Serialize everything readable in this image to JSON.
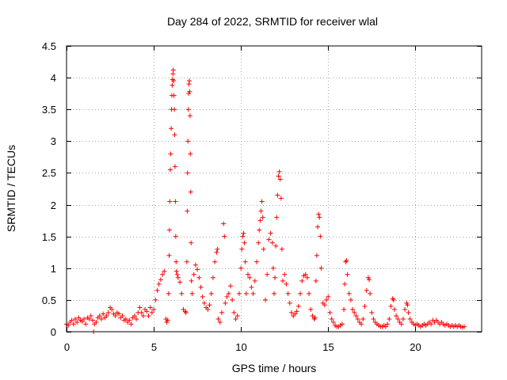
{
  "chart_data": {
    "type": "scatter",
    "title": "Day 284 of 2022, SRMTID for receiver wlal",
    "xlabel": "GPS time / hours",
    "ylabel": "SRMTID / TECUs",
    "xlim": [
      0,
      23.8
    ],
    "ylim": [
      0,
      4.5
    ],
    "xticks": [
      0,
      5,
      10,
      15,
      20
    ],
    "xtick_labels": [
      "0",
      "5",
      "10",
      "15",
      "20"
    ],
    "yticks": [
      0,
      0.5,
      1,
      1.5,
      2,
      2.5,
      3,
      3.5,
      4,
      4.5
    ],
    "ytick_labels": [
      "0",
      "0.5",
      "1",
      "1.5",
      "2",
      "2.5",
      "3",
      "3.5",
      "4",
      "4.5"
    ],
    "grid": true,
    "marker": "+",
    "color": "#ff0000",
    "series": [
      {
        "name": "SRMTID",
        "points": [
          [
            0.0,
            0.12
          ],
          [
            0.1,
            0.1
          ],
          [
            0.2,
            0.15
          ],
          [
            0.3,
            0.18
          ],
          [
            0.4,
            0.12
          ],
          [
            0.5,
            0.2
          ],
          [
            0.6,
            0.15
          ],
          [
            0.7,
            0.22
          ],
          [
            0.8,
            0.18
          ],
          [
            0.9,
            0.16
          ],
          [
            1.0,
            0.2
          ],
          [
            1.1,
            0.12
          ],
          [
            1.2,
            0.22
          ],
          [
            1.3,
            0.2
          ],
          [
            1.4,
            0.25
          ],
          [
            1.5,
            0.18
          ],
          [
            1.55,
            0.0
          ],
          [
            1.6,
            0.12
          ],
          [
            1.7,
            0.15
          ],
          [
            1.8,
            0.22
          ],
          [
            1.9,
            0.25
          ],
          [
            2.0,
            0.2
          ],
          [
            2.1,
            0.28
          ],
          [
            2.2,
            0.22
          ],
          [
            2.3,
            0.25
          ],
          [
            2.4,
            0.3
          ],
          [
            2.5,
            0.38
          ],
          [
            2.6,
            0.35
          ],
          [
            2.7,
            0.28
          ],
          [
            2.8,
            0.25
          ],
          [
            2.9,
            0.3
          ],
          [
            3.0,
            0.28
          ],
          [
            3.1,
            0.22
          ],
          [
            3.2,
            0.25
          ],
          [
            3.3,
            0.18
          ],
          [
            3.4,
            0.2
          ],
          [
            3.5,
            0.15
          ],
          [
            3.6,
            0.18
          ],
          [
            3.7,
            0.12
          ],
          [
            3.8,
            0.22
          ],
          [
            3.9,
            0.25
          ],
          [
            4.0,
            0.2
          ],
          [
            4.1,
            0.3
          ],
          [
            4.2,
            0.38
          ],
          [
            4.3,
            0.3
          ],
          [
            4.4,
            0.25
          ],
          [
            4.5,
            0.35
          ],
          [
            4.6,
            0.32
          ],
          [
            4.7,
            0.25
          ],
          [
            4.8,
            0.38
          ],
          [
            4.9,
            0.3
          ],
          [
            5.0,
            0.35
          ],
          [
            5.1,
            0.5
          ],
          [
            5.2,
            0.65
          ],
          [
            5.3,
            0.75
          ],
          [
            5.4,
            0.82
          ],
          [
            5.5,
            0.9
          ],
          [
            5.6,
            0.95
          ],
          [
            5.7,
            0.2
          ],
          [
            5.75,
            0.15
          ],
          [
            5.8,
            0.18
          ],
          [
            5.85,
            0.6
          ],
          [
            5.88,
            1.2
          ],
          [
            5.9,
            1.6
          ],
          [
            5.92,
            2.05
          ],
          [
            5.95,
            2.55
          ],
          [
            5.97,
            2.8
          ],
          [
            6.0,
            3.2
          ],
          [
            6.02,
            3.5
          ],
          [
            6.04,
            3.72
          ],
          [
            6.06,
            3.88
          ],
          [
            6.08,
            3.97
          ],
          [
            6.1,
            4.06
          ],
          [
            6.12,
            4.12
          ],
          [
            6.14,
            3.95
          ],
          [
            6.16,
            3.72
          ],
          [
            6.18,
            3.5
          ],
          [
            6.2,
            3.1
          ],
          [
            6.22,
            2.6
          ],
          [
            6.24,
            2.05
          ],
          [
            6.26,
            1.5
          ],
          [
            6.28,
            1.1
          ],
          [
            6.3,
            0.95
          ],
          [
            6.35,
            0.9
          ],
          [
            6.4,
            0.85
          ],
          [
            6.5,
            0.78
          ],
          [
            6.6,
            0.6
          ],
          [
            6.7,
            0.35
          ],
          [
            6.8,
            0.32
          ],
          [
            6.85,
            0.3
          ],
          [
            6.9,
            1.1
          ],
          [
            6.92,
            1.9
          ],
          [
            6.94,
            2.5
          ],
          [
            6.96,
            3.0
          ],
          [
            6.98,
            3.5
          ],
          [
            7.0,
            3.75
          ],
          [
            7.02,
            3.9
          ],
          [
            7.04,
            3.95
          ],
          [
            7.06,
            3.78
          ],
          [
            7.08,
            3.4
          ],
          [
            7.1,
            2.8
          ],
          [
            7.12,
            2.2
          ],
          [
            7.14,
            1.4
          ],
          [
            7.16,
            0.8
          ],
          [
            7.2,
            0.6
          ],
          [
            7.3,
            0.9
          ],
          [
            7.4,
            1.05
          ],
          [
            7.5,
            0.98
          ],
          [
            7.6,
            0.85
          ],
          [
            7.7,
            0.7
          ],
          [
            7.8,
            0.55
          ],
          [
            7.9,
            0.45
          ],
          [
            8.0,
            0.38
          ],
          [
            8.1,
            0.35
          ],
          [
            8.2,
            0.42
          ],
          [
            8.3,
            0.6
          ],
          [
            8.4,
            0.85
          ],
          [
            8.5,
            1.1
          ],
          [
            8.6,
            1.25
          ],
          [
            8.65,
            1.3
          ],
          [
            8.7,
            0.2
          ],
          [
            8.8,
            0.15
          ],
          [
            8.9,
            0.3
          ],
          [
            9.0,
            1.7
          ],
          [
            9.05,
            1.5
          ],
          [
            9.1,
            0.45
          ],
          [
            9.2,
            0.55
          ],
          [
            9.3,
            0.6
          ],
          [
            9.4,
            0.72
          ],
          [
            9.5,
            0.5
          ],
          [
            9.6,
            0.3
          ],
          [
            9.7,
            0.2
          ],
          [
            9.8,
            0.25
          ],
          [
            9.9,
            0.6
          ],
          [
            10.0,
            1.0
          ],
          [
            10.05,
            1.3
          ],
          [
            10.1,
            1.5
          ],
          [
            10.15,
            1.55
          ],
          [
            10.2,
            1.4
          ],
          [
            10.25,
            1.1
          ],
          [
            10.3,
            0.6
          ],
          [
            10.4,
            0.9
          ],
          [
            10.5,
            0.85
          ],
          [
            10.6,
            0.7
          ],
          [
            10.7,
            0.6
          ],
          [
            10.8,
            0.8
          ],
          [
            10.9,
            1.1
          ],
          [
            11.0,
            1.4
          ],
          [
            11.05,
            1.6
          ],
          [
            11.1,
            1.75
          ],
          [
            11.15,
            1.9
          ],
          [
            11.2,
            2.05
          ],
          [
            11.25,
            1.8
          ],
          [
            11.3,
            1.3
          ],
          [
            11.4,
            0.5
          ],
          [
            11.5,
            0.9
          ],
          [
            11.6,
            1.45
          ],
          [
            11.7,
            1.55
          ],
          [
            11.8,
            1.4
          ],
          [
            11.85,
            1.0
          ],
          [
            11.9,
            0.6
          ],
          [
            11.95,
            0.85
          ],
          [
            12.0,
            1.35
          ],
          [
            12.05,
            1.8
          ],
          [
            12.1,
            2.15
          ],
          [
            12.15,
            2.45
          ],
          [
            12.2,
            2.52
          ],
          [
            12.25,
            2.4
          ],
          [
            12.3,
            2.1
          ],
          [
            12.35,
            1.3
          ],
          [
            12.4,
            0.8
          ],
          [
            12.5,
            0.9
          ],
          [
            12.6,
            0.75
          ],
          [
            12.7,
            0.6
          ],
          [
            12.8,
            0.45
          ],
          [
            12.9,
            0.3
          ],
          [
            13.0,
            0.25
          ],
          [
            13.1,
            0.28
          ],
          [
            13.2,
            0.32
          ],
          [
            13.3,
            0.4
          ],
          [
            13.4,
            0.6
          ],
          [
            13.5,
            0.8
          ],
          [
            13.6,
            0.88
          ],
          [
            13.7,
            0.9
          ],
          [
            13.8,
            0.85
          ],
          [
            13.9,
            0.6
          ],
          [
            14.0,
            0.35
          ],
          [
            14.1,
            0.25
          ],
          [
            14.2,
            0.2
          ],
          [
            14.25,
            0.22
          ],
          [
            14.3,
            0.8
          ],
          [
            14.35,
            1.2
          ],
          [
            14.4,
            1.65
          ],
          [
            14.45,
            1.85
          ],
          [
            14.5,
            1.8
          ],
          [
            14.55,
            1.5
          ],
          [
            14.6,
            1.0
          ],
          [
            14.7,
            0.45
          ],
          [
            14.8,
            0.42
          ],
          [
            14.9,
            0.5
          ],
          [
            15.0,
            0.55
          ],
          [
            15.1,
            0.3
          ],
          [
            15.2,
            0.2
          ],
          [
            15.3,
            0.15
          ],
          [
            15.4,
            0.1
          ],
          [
            15.5,
            0.08
          ],
          [
            15.6,
            0.08
          ],
          [
            15.7,
            0.1
          ],
          [
            15.8,
            0.12
          ],
          [
            15.9,
            0.35
          ],
          [
            15.95,
            0.75
          ],
          [
            16.0,
            1.1
          ],
          [
            16.05,
            1.12
          ],
          [
            16.1,
            0.9
          ],
          [
            16.2,
            0.6
          ],
          [
            16.3,
            0.5
          ],
          [
            16.4,
            0.35
          ],
          [
            16.5,
            0.3
          ],
          [
            16.6,
            0.25
          ],
          [
            16.7,
            0.2
          ],
          [
            16.8,
            0.15
          ],
          [
            16.9,
            0.12
          ],
          [
            17.0,
            0.2
          ],
          [
            17.1,
            0.4
          ],
          [
            17.2,
            0.65
          ],
          [
            17.3,
            0.85
          ],
          [
            17.35,
            0.82
          ],
          [
            17.4,
            0.6
          ],
          [
            17.5,
            0.3
          ],
          [
            17.6,
            0.2
          ],
          [
            17.7,
            0.15
          ],
          [
            17.8,
            0.12
          ],
          [
            17.9,
            0.1
          ],
          [
            18.0,
            0.08
          ],
          [
            18.1,
            0.08
          ],
          [
            18.2,
            0.1
          ],
          [
            18.3,
            0.08
          ],
          [
            18.4,
            0.12
          ],
          [
            18.5,
            0.2
          ],
          [
            18.6,
            0.4
          ],
          [
            18.7,
            0.52
          ],
          [
            18.75,
            0.5
          ],
          [
            18.8,
            0.35
          ],
          [
            18.9,
            0.25
          ],
          [
            19.0,
            0.2
          ],
          [
            19.1,
            0.15
          ],
          [
            19.2,
            0.12
          ],
          [
            19.3,
            0.2
          ],
          [
            19.4,
            0.35
          ],
          [
            19.5,
            0.45
          ],
          [
            19.55,
            0.42
          ],
          [
            19.6,
            0.3
          ],
          [
            19.7,
            0.2
          ],
          [
            19.8,
            0.15
          ],
          [
            19.9,
            0.12
          ],
          [
            20.0,
            0.1
          ],
          [
            20.1,
            0.12
          ],
          [
            20.2,
            0.1
          ],
          [
            20.3,
            0.08
          ],
          [
            20.4,
            0.1
          ],
          [
            20.5,
            0.12
          ],
          [
            20.6,
            0.1
          ],
          [
            20.7,
            0.12
          ],
          [
            20.8,
            0.15
          ],
          [
            20.9,
            0.12
          ],
          [
            21.0,
            0.18
          ],
          [
            21.1,
            0.15
          ],
          [
            21.2,
            0.18
          ],
          [
            21.3,
            0.15
          ],
          [
            21.4,
            0.12
          ],
          [
            21.5,
            0.15
          ],
          [
            21.6,
            0.12
          ],
          [
            21.7,
            0.1
          ],
          [
            21.8,
            0.12
          ],
          [
            21.9,
            0.1
          ],
          [
            22.0,
            0.08
          ],
          [
            22.1,
            0.1
          ],
          [
            22.2,
            0.08
          ],
          [
            22.3,
            0.1
          ],
          [
            22.4,
            0.08
          ],
          [
            22.5,
            0.1
          ],
          [
            22.6,
            0.08
          ],
          [
            22.7,
            0.07
          ],
          [
            22.8,
            0.08
          ]
        ]
      }
    ]
  }
}
